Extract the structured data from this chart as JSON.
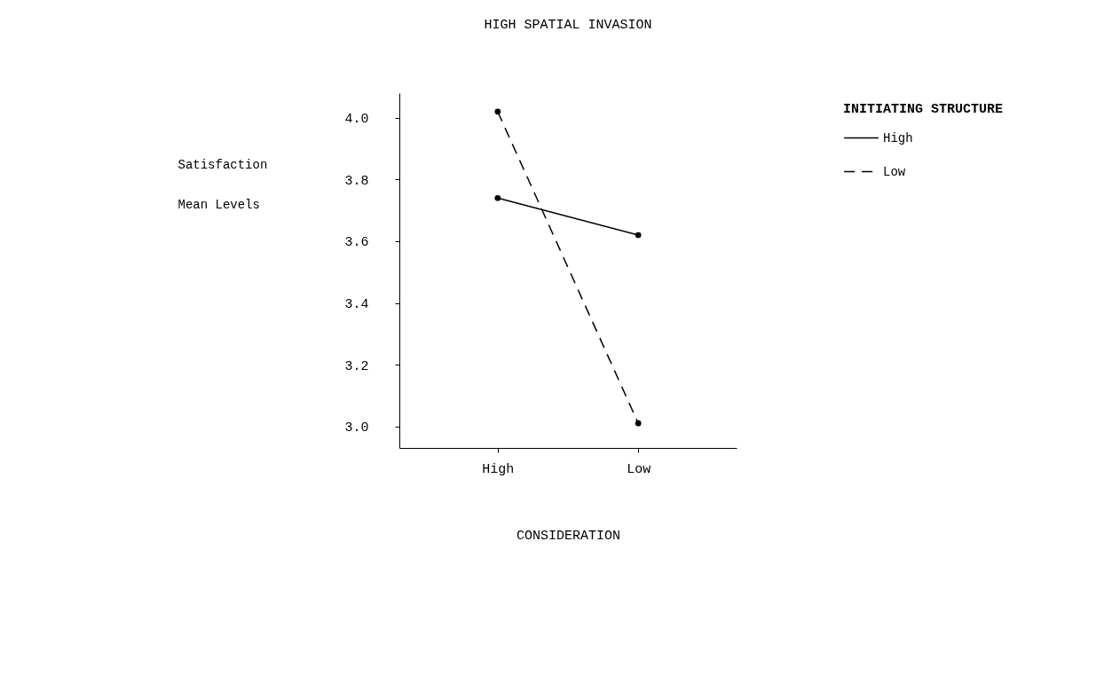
{
  "chart_data": {
    "type": "line",
    "title": "HIGH SPATIAL INVASION",
    "xlabel": "CONSIDERATION",
    "ylabel": "Satisfaction Mean Levels",
    "legend_title": "INITIATING STRUCTURE",
    "categories": [
      "High",
      "Low"
    ],
    "series": [
      {
        "name": "High",
        "color": "#000000",
        "line_style": "solid",
        "values": [
          3.74,
          3.62
        ]
      },
      {
        "name": "Low",
        "color": "#000000",
        "line_style": "dashed",
        "values": [
          4.02,
          3.01
        ]
      }
    ],
    "ylim": [
      2.93,
      4.08
    ],
    "yticks": [
      {
        "value": 3,
        "label": "3.0"
      },
      {
        "value": 3.2,
        "label": "3.2"
      },
      {
        "value": 3.4,
        "label": "3.4"
      },
      {
        "value": 3.6,
        "label": "3.6"
      },
      {
        "value": 3.8,
        "label": "3.8"
      },
      {
        "value": 4,
        "label": "4.0"
      }
    ],
    "grid": false,
    "legend": "right",
    "marker": "circle"
  }
}
